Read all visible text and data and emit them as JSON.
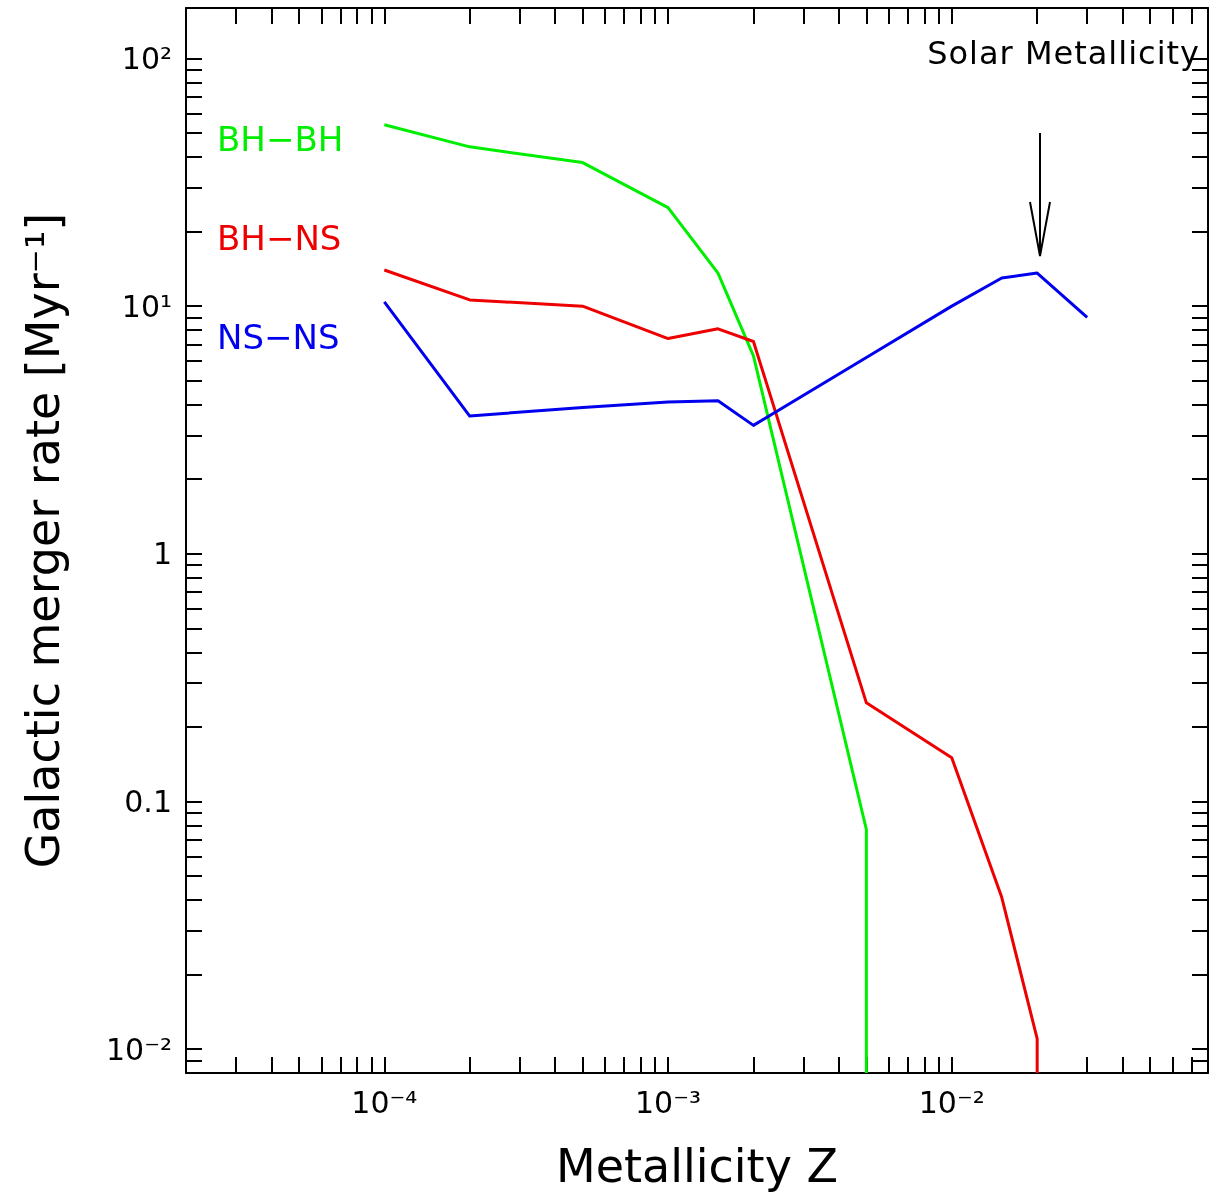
{
  "chart_data": {
    "type": "line",
    "xlabel": "Metallicity Z",
    "ylabel": "Galactic merger rate [Myr⁻¹]",
    "log": "xy",
    "grid": false,
    "legend": false,
    "marker": "none",
    "line_style": "solid",
    "xlim": [
      2e-05,
      0.08
    ],
    "ylim": [
      0.008,
      160
    ],
    "xticks": [
      {
        "value": 0.0001,
        "label": "10⁻⁴"
      },
      {
        "value": 0.001,
        "label": "10⁻³"
      },
      {
        "value": 0.01,
        "label": "10⁻²"
      }
    ],
    "yticks": [
      {
        "value": 0.01,
        "label": "10⁻²"
      },
      0.1,
      1,
      {
        "value": 10,
        "label": "10¹"
      },
      {
        "value": 100,
        "label": "10²"
      }
    ],
    "series": [
      {
        "name": "BH−BH",
        "color": "#00ee00",
        "x": [
          0.0001,
          0.0002,
          0.0005,
          0.001,
          0.0015,
          0.002,
          0.005,
          0.005
        ],
        "values": [
          54,
          44,
          38,
          25,
          13.6,
          6.3,
          0.077,
          0.008
        ]
      },
      {
        "name": "BH−NS",
        "color": "#ee0000",
        "x": [
          0.0001,
          0.0002,
          0.0005,
          0.001,
          0.0015,
          0.002,
          0.005,
          0.01,
          0.015,
          0.02,
          0.02
        ],
        "values": [
          14,
          10.6,
          10,
          7.4,
          8.1,
          7.2,
          0.25,
          0.15,
          0.041,
          0.011,
          0.008
        ]
      },
      {
        "name": "NS−NS",
        "color": "#0000ee",
        "x": [
          0.0001,
          0.0002,
          0.0005,
          0.001,
          0.0015,
          0.002,
          0.005,
          0.01,
          0.015,
          0.02,
          0.03
        ],
        "values": [
          10.4,
          3.6,
          3.9,
          4.1,
          4.15,
          3.3,
          6.2,
          10,
          13,
          13.6,
          9
        ]
      }
    ],
    "annotations": [
      "Solar Metallicity"
    ]
  }
}
